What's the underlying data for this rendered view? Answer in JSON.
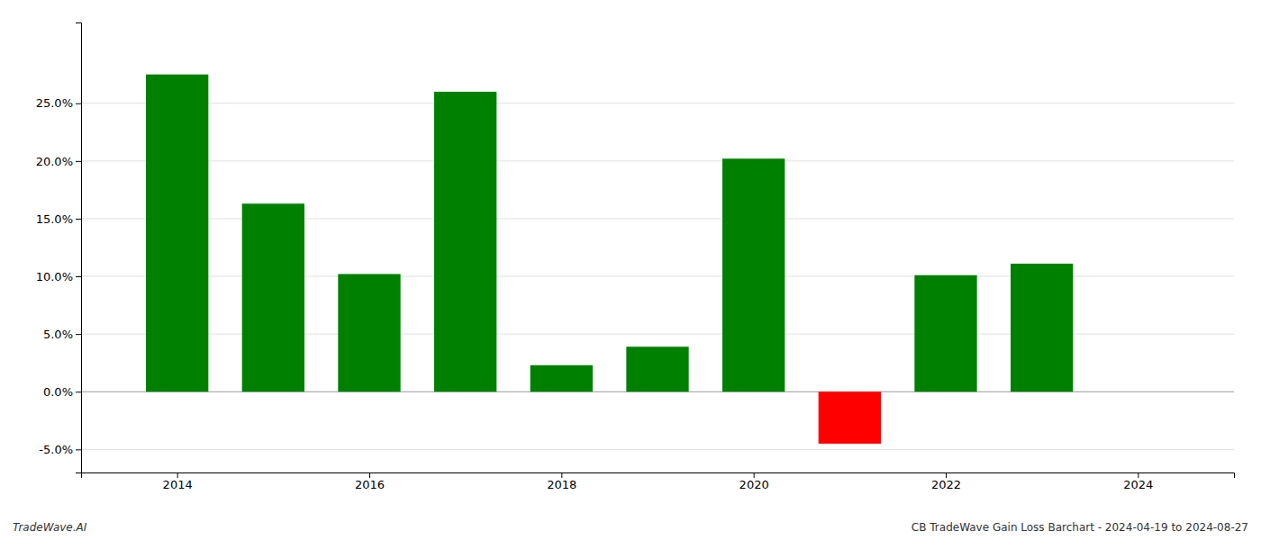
{
  "chart_data": {
    "type": "bar",
    "x": [
      2014,
      2015,
      2016,
      2017,
      2018,
      2019,
      2020,
      2021,
      2022,
      2023
    ],
    "values": [
      0.275,
      0.163,
      0.102,
      0.26,
      0.023,
      0.039,
      0.202,
      -0.045,
      0.101,
      0.111
    ],
    "colors": [
      "#008000",
      "#008000",
      "#008000",
      "#008000",
      "#008000",
      "#008000",
      "#008000",
      "#ff0000",
      "#008000",
      "#008000"
    ],
    "xlim": [
      2013.0,
      2025.0
    ],
    "xticks": [
      2014,
      2016,
      2018,
      2020,
      2022,
      2024
    ],
    "ylim": [
      -0.07,
      0.32
    ],
    "yticks": [
      {
        "value": -0.05,
        "label": "-5.0%"
      },
      {
        "value": 0.0,
        "label": "0.0%"
      },
      {
        "value": 0.05,
        "label": "5.0%"
      },
      {
        "value": 0.1,
        "label": "10.0%"
      },
      {
        "value": 0.15,
        "label": "15.0%"
      },
      {
        "value": 0.2,
        "label": "20.0%"
      },
      {
        "value": 0.25,
        "label": "25.0%"
      }
    ],
    "grid": true,
    "annotations": [
      "TradeWave.AI",
      "CB TradeWave Gain Loss Barchart - 2024-04-19 to 2024-08-27"
    ]
  }
}
